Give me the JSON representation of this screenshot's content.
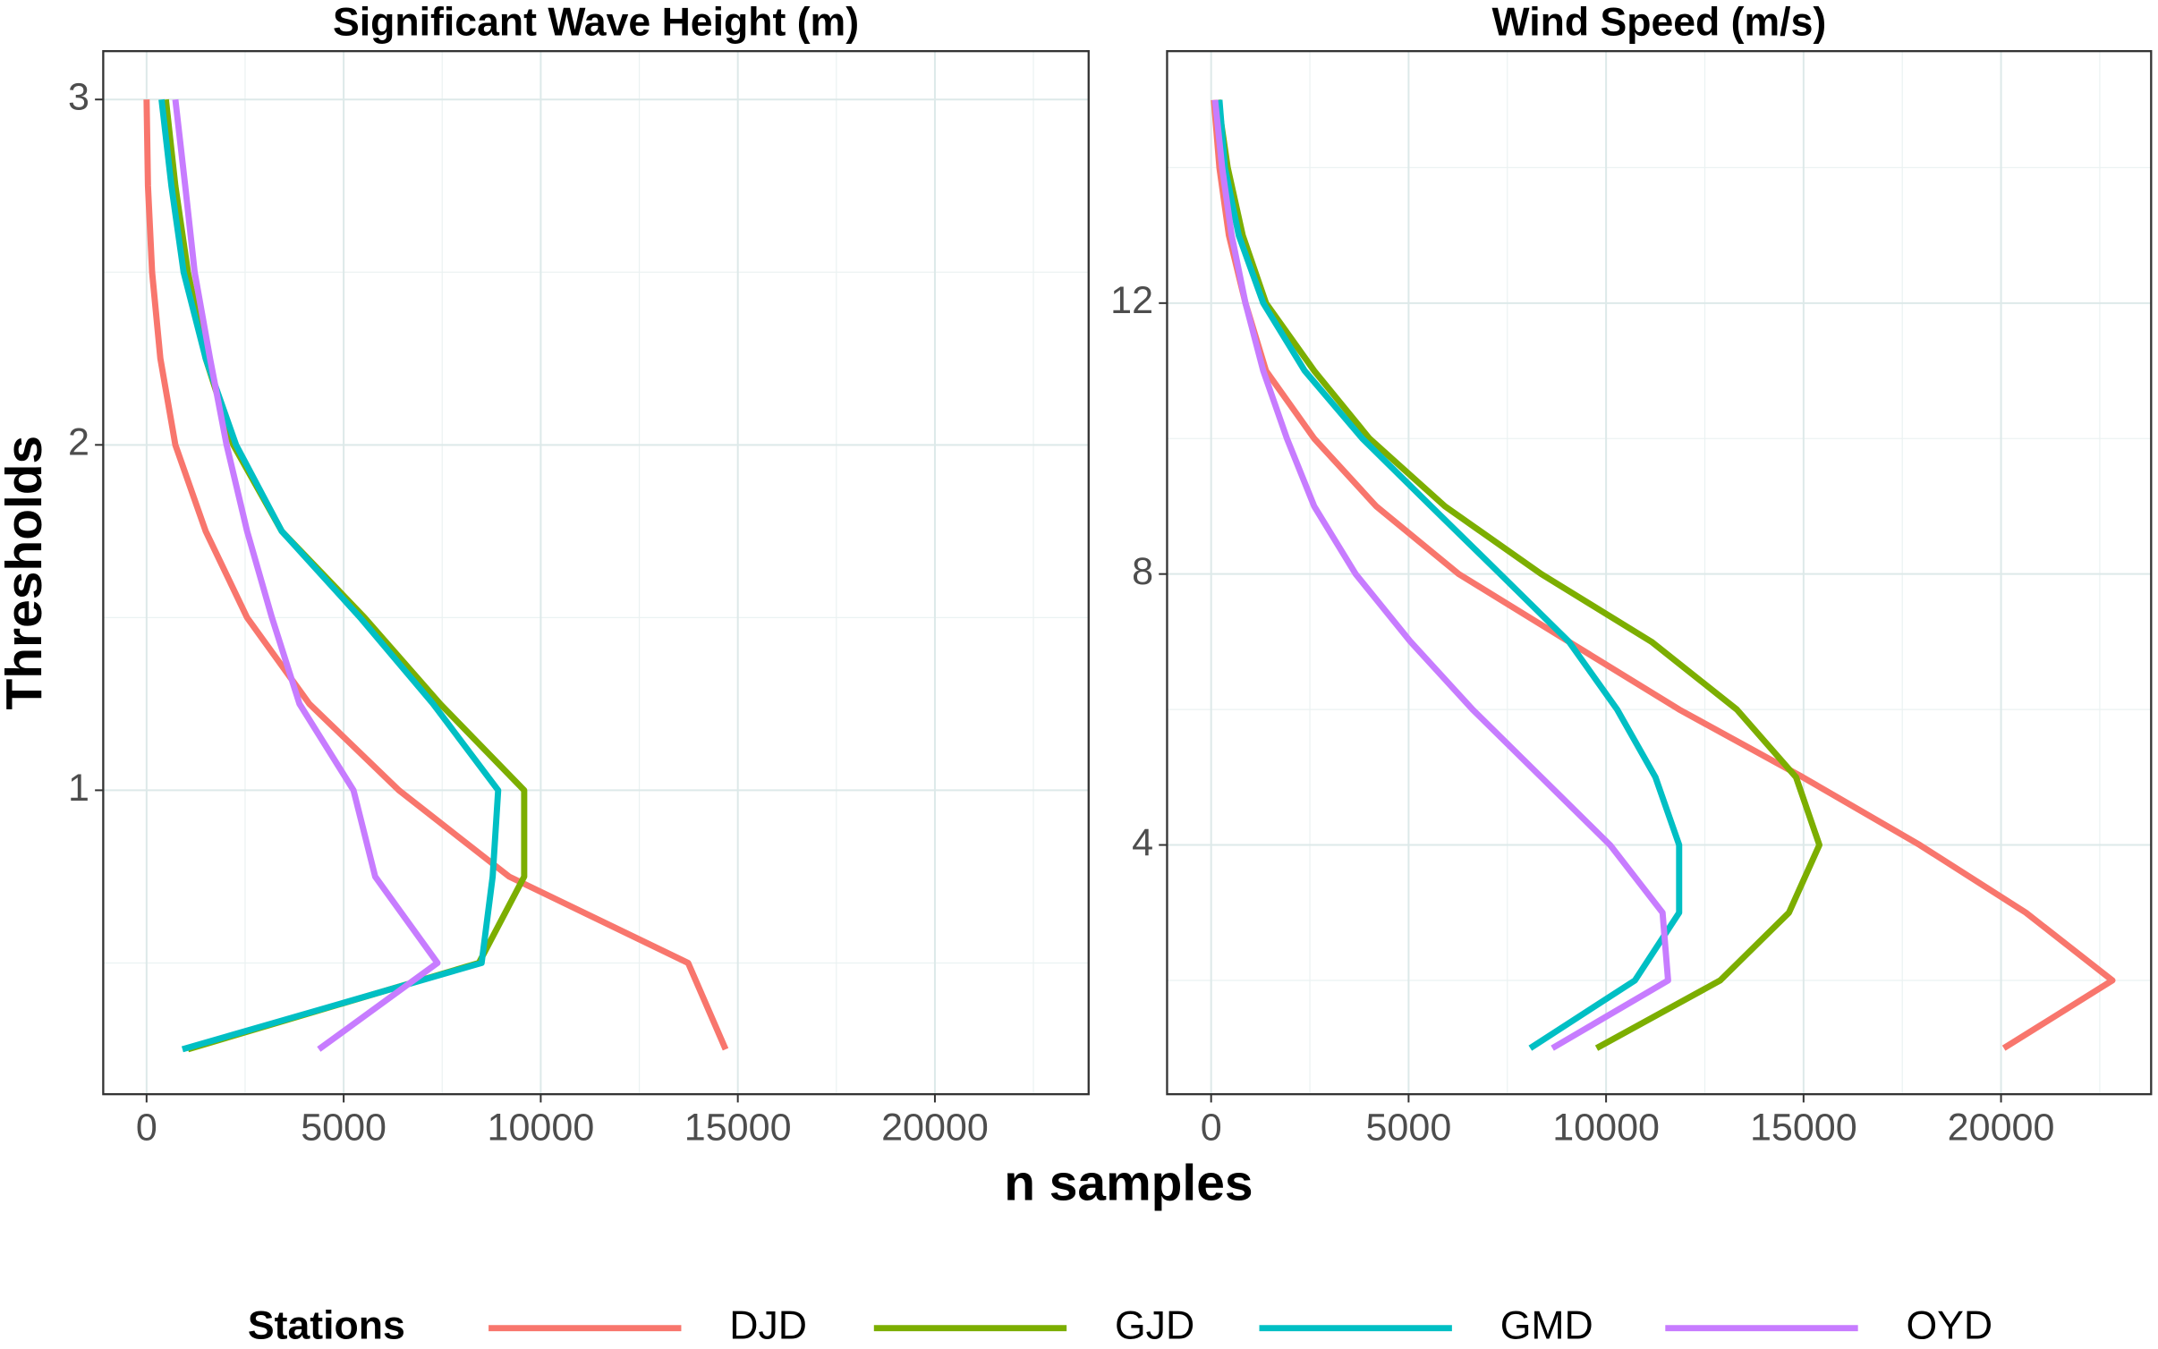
{
  "x_label": "n samples",
  "y_label": "Thresholds",
  "legend_title": "Stations",
  "chart_data": [
    {
      "type": "line",
      "title": "Significant Wave Height (m)",
      "xlim": [
        -1100,
        23900
      ],
      "xticks": [
        0,
        5000,
        10000,
        15000,
        20000
      ],
      "xminor": [
        2500,
        7500,
        12500,
        17500,
        22500
      ],
      "ylim": [
        0.12,
        3.14
      ],
      "yticks": [
        1,
        2,
        3
      ],
      "yminor": [
        0.5,
        1.5,
        2.5
      ],
      "grid": true,
      "series": [
        {
          "name": "DJD",
          "color": "#F8766D",
          "x": [
            14690,
            13740,
            9200,
            6400,
            4130,
            2550,
            1500,
            730,
            350,
            140,
            35,
            0
          ],
          "values": [
            0.25,
            0.5,
            0.75,
            1,
            1.25,
            1.5,
            1.75,
            2,
            2.25,
            2.5,
            2.75,
            3
          ]
        },
        {
          "name": "GJD",
          "color": "#7CAE00",
          "x": [
            1050,
            8430,
            9580,
            9580,
            7450,
            5530,
            3430,
            2200,
            1500,
            1050,
            730,
            490
          ],
          "values": [
            0.25,
            0.5,
            0.75,
            1,
            1.25,
            1.5,
            1.75,
            2,
            2.25,
            2.5,
            2.75,
            3
          ]
        },
        {
          "name": "GMD",
          "color": "#00BFC4",
          "x": [
            910,
            8500,
            8780,
            8920,
            7270,
            5420,
            3430,
            2270,
            1500,
            940,
            630,
            380
          ],
          "values": [
            0.25,
            0.5,
            0.75,
            1,
            1.25,
            1.5,
            1.75,
            2,
            2.25,
            2.5,
            2.75,
            3
          ]
        },
        {
          "name": "OYD",
          "color": "#C77CFF",
          "x": [
            4370,
            7380,
            5800,
            5250,
            3880,
            3180,
            2550,
            2030,
            1610,
            1220,
            980,
            730
          ],
          "values": [
            0.25,
            0.5,
            0.75,
            1,
            1.25,
            1.5,
            1.75,
            2,
            2.25,
            2.5,
            2.75,
            3
          ]
        }
      ]
    },
    {
      "type": "line",
      "title": "Wind Speed (m/s)",
      "xlim": [
        -1115,
        23800
      ],
      "xticks": [
        0,
        5000,
        10000,
        15000,
        20000
      ],
      "xminor": [
        2500,
        7500,
        12500,
        17500,
        22500
      ],
      "ylim": [
        0.32,
        15.72
      ],
      "yticks": [
        4,
        8,
        12
      ],
      "yminor": [
        2,
        6,
        10,
        14
      ],
      "grid": true,
      "series": [
        {
          "name": "DJD",
          "color": "#F8766D",
          "x": [
            20070,
            22820,
            20630,
            17940,
            14980,
            11850,
            9060,
            6270,
            4180,
            2610,
            1390,
            870,
            450,
            210,
            70
          ],
          "values": [
            1,
            2,
            3,
            4,
            5,
            6,
            7,
            8,
            9,
            10,
            11,
            12,
            13,
            14,
            15
          ]
        },
        {
          "name": "GJD",
          "color": "#7CAE00",
          "x": [
            9760,
            12890,
            14630,
            15400,
            14810,
            13310,
            11150,
            8360,
            5920,
            4010,
            2610,
            1390,
            800,
            420,
            170
          ],
          "values": [
            1,
            2,
            3,
            4,
            5,
            6,
            7,
            8,
            9,
            10,
            11,
            12,
            13,
            14,
            15
          ]
        },
        {
          "name": "GMD",
          "color": "#00BFC4",
          "x": [
            8080,
            10730,
            11850,
            11850,
            11250,
            10280,
            9060,
            7320,
            5570,
            3830,
            2370,
            1320,
            700,
            350,
            210
          ],
          "values": [
            1,
            2,
            3,
            4,
            5,
            6,
            7,
            8,
            9,
            10,
            11,
            12,
            13,
            14,
            15
          ]
        },
        {
          "name": "OYD",
          "color": "#C77CFF",
          "x": [
            8640,
            11570,
            11430,
            10100,
            8360,
            6620,
            5050,
            3660,
            2610,
            1920,
            1320,
            870,
            520,
            280,
            100
          ],
          "values": [
            1,
            2,
            3,
            4,
            5,
            6,
            7,
            8,
            9,
            10,
            11,
            12,
            13,
            14,
            15
          ]
        }
      ]
    }
  ]
}
